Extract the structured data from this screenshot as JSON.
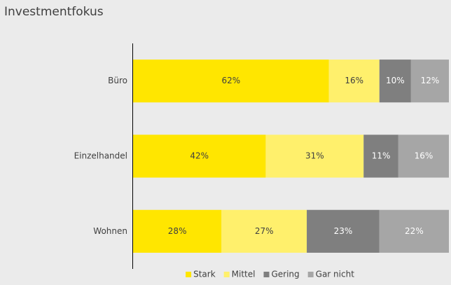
{
  "chart_data": {
    "type": "stacked-bar-horizontal",
    "title": "Investmentfokus",
    "categories": [
      "Büro",
      "Einzelhandel",
      "Wohnen"
    ],
    "xlim": [
      0,
      100
    ],
    "legend": "bottom",
    "series": [
      {
        "name": "Stark",
        "color": "#ffe600",
        "label_color": "#404040",
        "values": [
          62,
          42,
          28
        ],
        "value_labels": [
          "62%",
          "42%",
          "28%"
        ]
      },
      {
        "name": "Mittel",
        "color": "#fff06c",
        "label_color": "#404040",
        "values": [
          16,
          31,
          27
        ],
        "value_labels": [
          "16%",
          "31%",
          "27%"
        ]
      },
      {
        "name": "Gering",
        "color": "#7f7f7f",
        "label_color": "#ffffff",
        "values": [
          10,
          11,
          23
        ],
        "value_labels": [
          "10%",
          "11%",
          "23%"
        ]
      },
      {
        "name": "Gar nicht",
        "color": "#a6a6a6",
        "label_color": "#ffffff",
        "values": [
          12,
          16,
          22
        ],
        "value_labels": [
          "12%",
          "16%",
          "22%"
        ]
      }
    ]
  }
}
